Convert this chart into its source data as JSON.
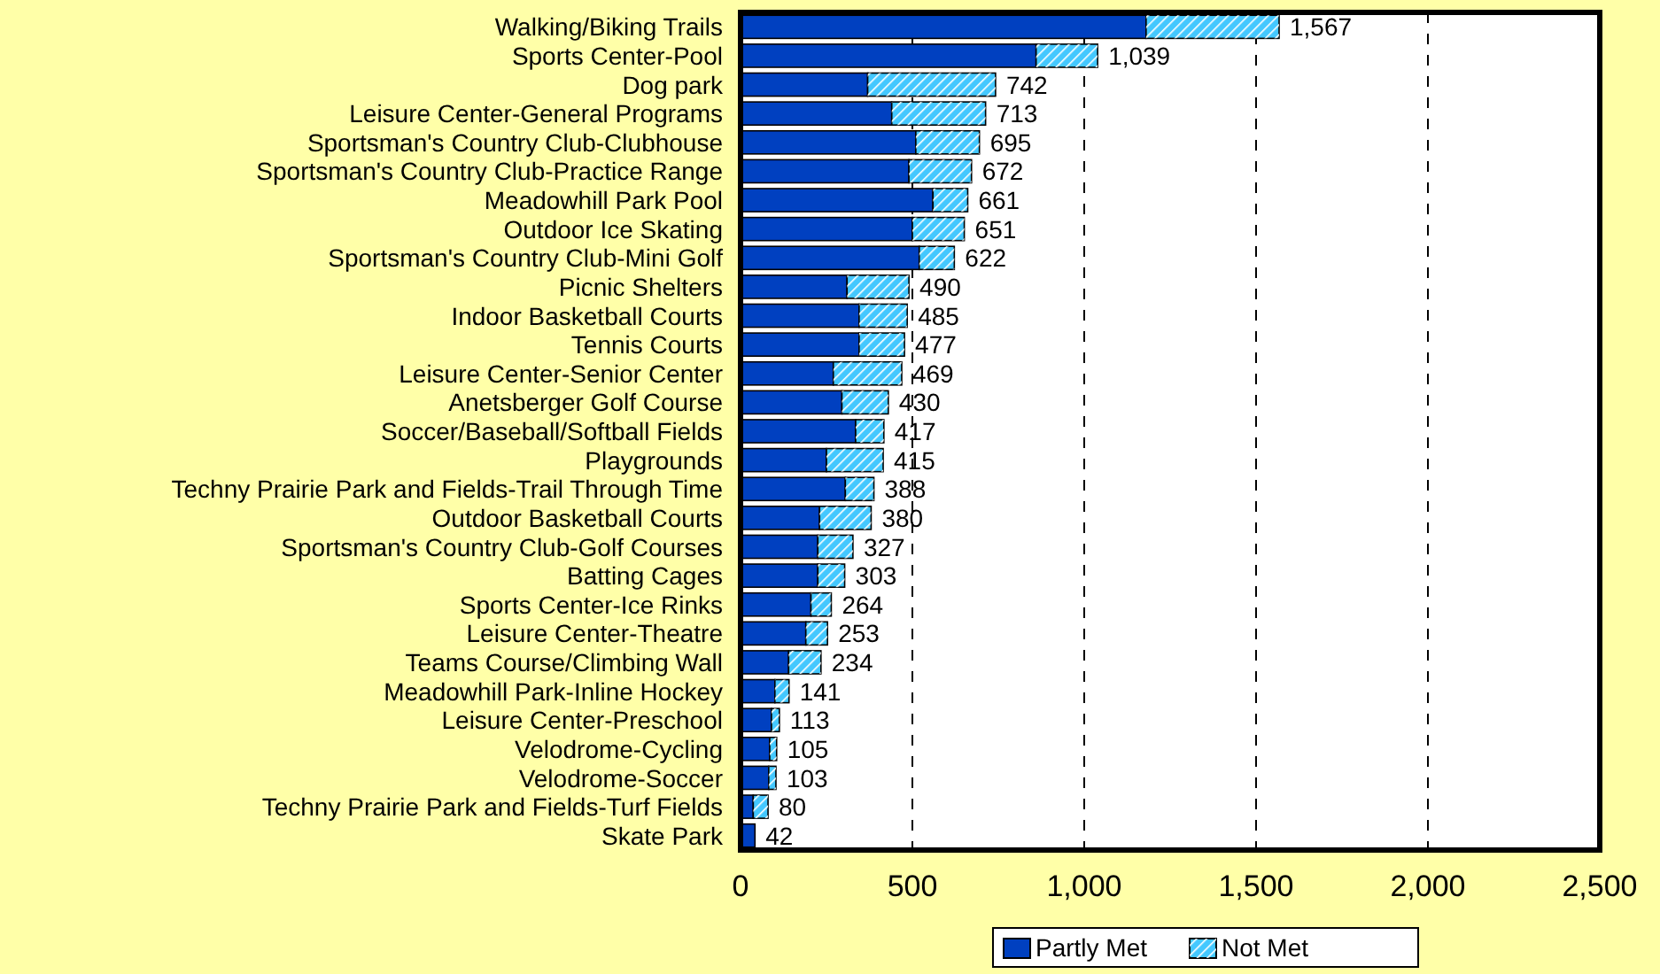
{
  "chart_data": {
    "type": "bar",
    "orientation": "horizontal",
    "stacked": true,
    "categories": [
      "Walking/Biking Trails",
      "Sports Center-Pool",
      "Dog park",
      "Leisure Center-General Programs",
      "Sportsman's Country Club-Clubhouse",
      "Sportsman's Country Club-Practice Range",
      "Meadowhill Park Pool",
      "Outdoor Ice Skating",
      "Sportsman's Country Club-Mini Golf",
      "Picnic Shelters",
      "Indoor Basketball Courts",
      "Tennis Courts",
      "Leisure Center-Senior Center",
      "Anetsberger Golf Course",
      "Soccer/Baseball/Softball Fields",
      "Playgrounds",
      "Techny Prairie Park and Fields-Trail Through Time",
      "Outdoor Basketball Courts",
      "Sportsman's Country Club-Golf Courses",
      "Batting Cages",
      "Sports Center-Ice Rinks",
      "Leisure Center-Theatre",
      "Teams Course/Climbing Wall",
      "Meadowhill Park-Inline Hockey",
      "Leisure Center-Preschool",
      "Velodrome-Cycling",
      "Velodrome-Soccer",
      "Techny Prairie Park and Fields-Turf Fields",
      "Skate Park"
    ],
    "series": [
      {
        "name": "Partly Met",
        "color": "#0040c0",
        "values": [
          1180,
          860,
          370,
          440,
          510,
          490,
          560,
          500,
          520,
          310,
          345,
          345,
          270,
          295,
          335,
          250,
          305,
          230,
          225,
          225,
          205,
          190,
          140,
          100,
          90,
          85,
          82,
          37,
          42
        ]
      },
      {
        "name": "Not Met",
        "color": "#44c8ff",
        "values": [
          387,
          179,
          372,
          273,
          185,
          182,
          101,
          151,
          102,
          180,
          140,
          132,
          199,
          135,
          82,
          165,
          83,
          150,
          102,
          78,
          59,
          63,
          94,
          41,
          23,
          20,
          21,
          43,
          0
        ]
      }
    ],
    "totals": [
      "1,567",
      "1,039",
      "742",
      "713",
      "695",
      "672",
      "661",
      "651",
      "622",
      "490",
      "485",
      "477",
      "469",
      "430",
      "417",
      "415",
      "388",
      "380",
      "327",
      "303",
      "264",
      "253",
      "234",
      "141",
      "113",
      "105",
      "103",
      "80",
      "42"
    ],
    "xlim": [
      0,
      2500
    ],
    "xticks": [
      0,
      {
        "value": 500,
        "label": "500"
      },
      {
        "value": 1000,
        "label": "1,000"
      },
      {
        "value": 1500,
        "label": "1,500"
      },
      {
        "value": 2000,
        "label": "2,000"
      },
      {
        "value": 2500,
        "label": "2,500"
      }
    ],
    "grid": "x",
    "legend": "bottom"
  }
}
